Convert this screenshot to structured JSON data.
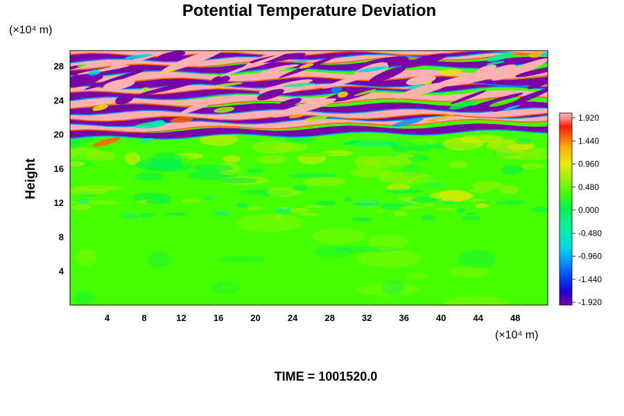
{
  "chart_data": {
    "type": "heatmap",
    "title": "Potential Temperature Deviation",
    "ylabel": "Height",
    "x_unit": "(×10⁴ m)",
    "y_unit": "(×10⁴ m)",
    "xlim": [
      0,
      51.5
    ],
    "ylim": [
      0,
      29.8
    ],
    "x_ticks": [
      "4",
      "8",
      "12",
      "16",
      "20",
      "24",
      "28",
      "32",
      "36",
      "40",
      "44",
      "48"
    ],
    "y_ticks": [
      "4",
      "8",
      "12",
      "16",
      "20",
      "24",
      "28"
    ],
    "colorbar": {
      "min": -1.92,
      "max": 1.92,
      "tick_labels": [
        "1.920",
        "1.440",
        "0.960",
        "0.480",
        "0.000",
        "-0.480",
        "-0.960",
        "-1.440",
        "-1.920"
      ],
      "colors": [
        "#7a00a8",
        "#2200d0",
        "#0040ff",
        "#0090ff",
        "#00d8e8",
        "#00f0a0",
        "#00f050",
        "#44ff00",
        "#a0f000",
        "#e8e800",
        "#ffb000",
        "#ff6000",
        "#ff1a00",
        "#ff8888",
        "#ffb0b0"
      ]
    },
    "field_description_free": false,
    "regions": {
      "lower_troposphere": {
        "y_range": [
          0,
          12
        ],
        "value_approx": 0.0
      },
      "upper_mixed": {
        "y_range": [
          12,
          19.5
        ],
        "value_approx": 0.1
      },
      "stratified_layers": {
        "y_range": [
          19.5,
          29.8
        ],
        "value_range": [
          -1.92,
          1.92
        ]
      }
    },
    "time_label": "TIME = 1001520.0"
  }
}
